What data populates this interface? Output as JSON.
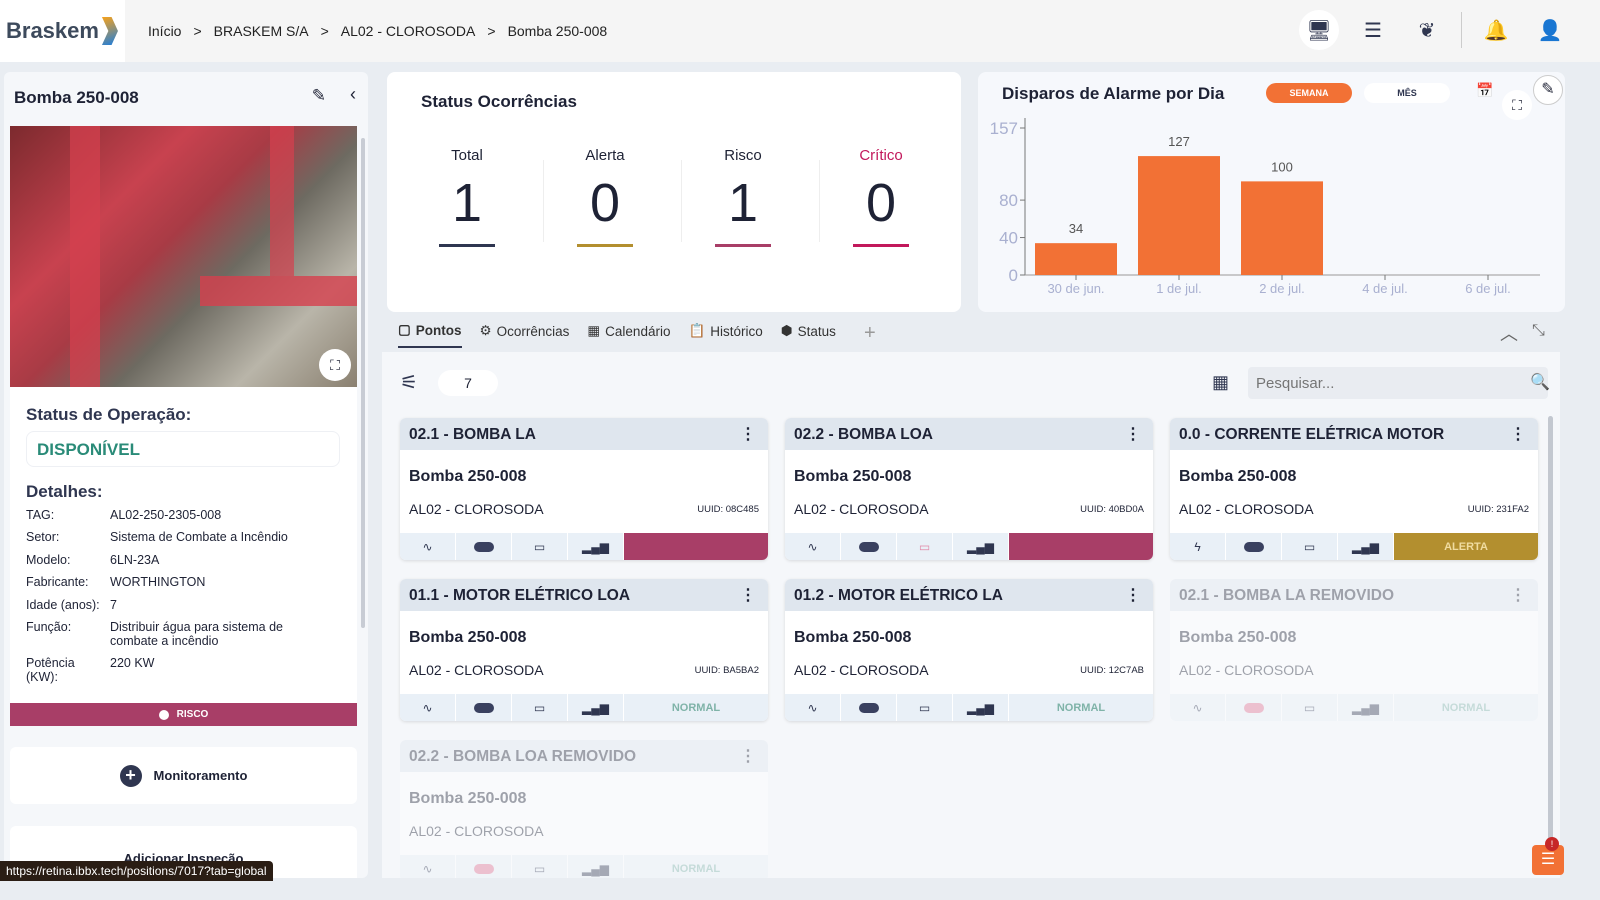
{
  "header": {
    "logo": "Braskem",
    "breadcrumb": [
      "Início",
      "BRASKEM S/A",
      "AL02 - CLOROSODA",
      "Bomba 250-008"
    ],
    "separator": ">",
    "icons": [
      "monitor-icon",
      "menu-lines-icon",
      "leaf-icon",
      "bell-icon",
      "user-icon"
    ]
  },
  "asset": {
    "title": "Bomba 250-008",
    "status_label": "Status de Operação:",
    "status_value": "DISPONÍVEL",
    "details_label": "Detalhes:",
    "details": [
      {
        "k": "TAG:",
        "v": "AL02-250-2305-008"
      },
      {
        "k": "Setor:",
        "v": "Sistema de Combate a Incêndio"
      },
      {
        "k": "Modelo:",
        "v": "6LN-23A"
      },
      {
        "k": "Fabricante:",
        "v": "WORTHINGTON"
      },
      {
        "k": "Idade (anos):",
        "v": "7"
      },
      {
        "k": "Função:",
        "v": "Distribuir água para sistema de combate a incêndio"
      },
      {
        "k": "Potência (KW):",
        "v": "220 KW"
      }
    ],
    "risk": "RISCO",
    "monitoring": "Monitoramento",
    "add_inspection": "Adicionar Inspeção"
  },
  "status_url": "https://retina.ibbx.tech/positions/7017?tab=global",
  "occurrences": {
    "title": "Status Ocorrências",
    "items": [
      {
        "label": "Total",
        "value": "1",
        "color": "#2f3650"
      },
      {
        "label": "Alerta",
        "value": "0",
        "color": "#b38f2f"
      },
      {
        "label": "Risco",
        "value": "1",
        "color": "#a83e67"
      },
      {
        "label": "Crítico",
        "value": "0",
        "color": "#c2185b"
      }
    ]
  },
  "chart_data": {
    "type": "bar",
    "title": "Disparos de Alarme por Dia",
    "categories": [
      "30 de jun.",
      "1 de jul.",
      "2 de jul.",
      "4 de jul.",
      "6 de jul."
    ],
    "values": [
      34,
      127,
      100,
      null,
      null
    ],
    "yticks": [
      0,
      40,
      80,
      157
    ],
    "ylim": [
      0,
      157
    ],
    "color": "#f27135",
    "toggle": [
      "SEMANA",
      "MÊS"
    ],
    "active_toggle": "SEMANA"
  },
  "tabs": [
    {
      "label": "Pontos",
      "icon": "square-icon"
    },
    {
      "label": "Ocorrências",
      "icon": "search-gear-icon"
    },
    {
      "label": "Calendário",
      "icon": "calendar-icon"
    },
    {
      "label": "Histórico",
      "icon": "clipboard-icon"
    },
    {
      "label": "Status",
      "icon": "cube-icon"
    }
  ],
  "points": {
    "count": "7",
    "search_placeholder": "Pesquisar...",
    "cards": [
      {
        "title": "02.1 - BOMBA LA",
        "asset": "Bomba 250-008",
        "location": "AL02 - CLOROSODA",
        "uuid": "UUID: 08C485",
        "status": "",
        "status_color": "#a83e67",
        "removed": false,
        "sensor": "pulse"
      },
      {
        "title": "02.2 - BOMBA LOA",
        "asset": "Bomba 250-008",
        "location": "AL02 - CLOROSODA",
        "uuid": "UUID: 40BD0A",
        "status": "",
        "status_color": "#a83e67",
        "removed": false,
        "sensor": "pulse"
      },
      {
        "title": "0.0 - CORRENTE ELÉTRICA MOTOR",
        "asset": "Bomba 250-008",
        "location": "AL02 - CLOROSODA",
        "uuid": "UUID: 231FA2",
        "status": "ALERTA",
        "status_color": "#b38f2f",
        "removed": false,
        "sensor": "bolt"
      },
      {
        "title": "01.1 - MOTOR ELÉTRICO LOA",
        "asset": "Bomba 250-008",
        "location": "AL02 - CLOROSODA",
        "uuid": "UUID: BA5BA2",
        "status": "NORMAL",
        "status_color": "#e9f0f7",
        "removed": false,
        "sensor": "pulse"
      },
      {
        "title": "01.2 - MOTOR ELÉTRICO LA",
        "asset": "Bomba 250-008",
        "location": "AL02 - CLOROSODA",
        "uuid": "UUID: 12C7AB",
        "status": "NORMAL",
        "status_color": "#e9f0f7",
        "removed": false,
        "sensor": "pulse"
      },
      {
        "title": "02.1 - BOMBA LA REMOVIDO",
        "asset": "Bomba 250-008",
        "location": "AL02 - CLOROSODA",
        "uuid": "",
        "status": "NORMAL",
        "status_color": "#e9f0f7",
        "removed": true,
        "sensor": "pulse"
      },
      {
        "title": "02.2 - BOMBA LOA REMOVIDO",
        "asset": "Bomba 250-008",
        "location": "AL02 - CLOROSODA",
        "uuid": "",
        "status": "NORMAL",
        "status_color": "#e9f0f7",
        "removed": true,
        "sensor": "pulse"
      }
    ]
  }
}
